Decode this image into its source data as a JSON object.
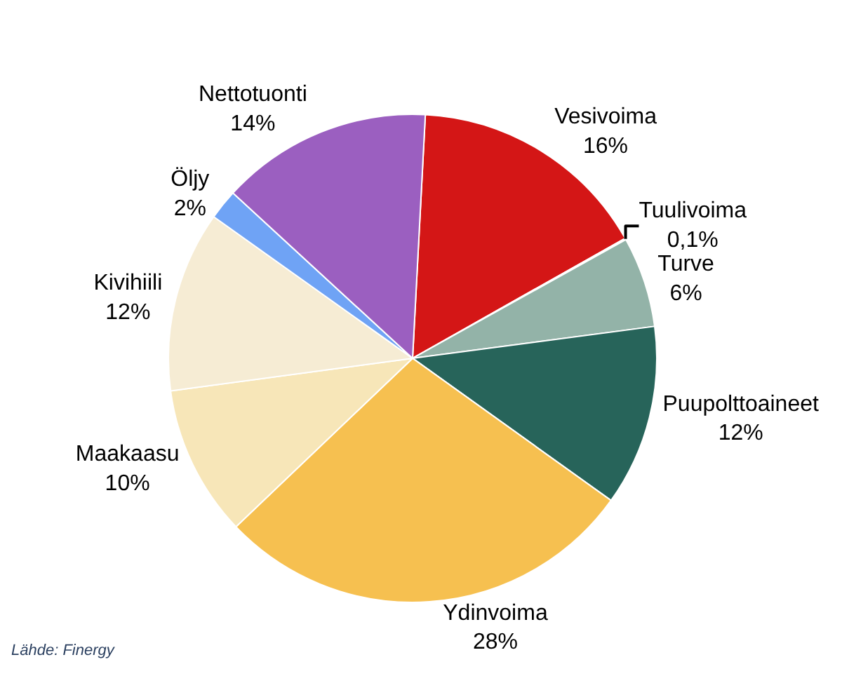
{
  "chart_data": {
    "type": "pie",
    "categories": [
      "Vesivoima",
      "Tuulivoima",
      "Turve",
      "Puupolttoaineet",
      "Ydinvoima",
      "Maakaasu",
      "Kivihiili",
      "Öljy",
      "Nettotuonti"
    ],
    "values": [
      16,
      0.1,
      6,
      12,
      28,
      10,
      12,
      2,
      14
    ],
    "value_labels": [
      "16%",
      "0,1%",
      "6%",
      "12%",
      "28%",
      "10%",
      "12%",
      "2%",
      "14%"
    ],
    "colors": [
      "#d41616",
      "#111111",
      "#93b3a8",
      "#27645a",
      "#f6c050",
      "#f7e6b8",
      "#f6ecd4",
      "#6fa3f5",
      "#9b5fc0"
    ],
    "legend": false,
    "annotations": [
      "Lähde: Finergy"
    ]
  }
}
